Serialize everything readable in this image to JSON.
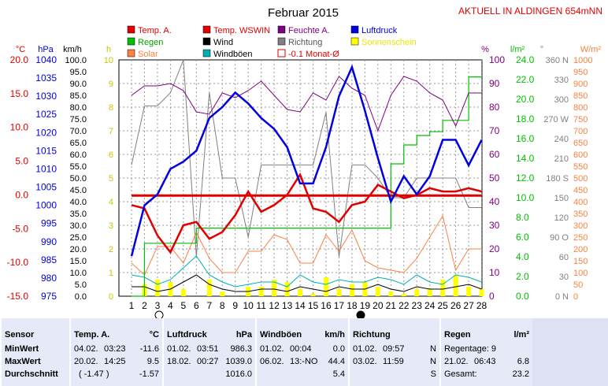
{
  "header": {
    "title": "Februar 2015",
    "location": "AKTUELL IN ALDINGEN 654mNN"
  },
  "legend": [
    {
      "label": "Temp. A.",
      "color": "#e00000",
      "style": "square"
    },
    {
      "label": "Temp. WSWIN",
      "color": "#e00000",
      "style": "square"
    },
    {
      "label": "Feuchte A.",
      "color": "#800080",
      "style": "square"
    },
    {
      "label": "Luftdruck",
      "color": "#0000e0",
      "style": "square"
    },
    {
      "label": "Regen",
      "color": "#00c000",
      "style": "square"
    },
    {
      "label": "Wind",
      "color": "#000000",
      "style": "square"
    },
    {
      "label": "Richtung",
      "color": "#808080",
      "style": "square"
    },
    {
      "label": "Sonnenschein",
      "color": "#ffff00",
      "style": "square"
    },
    {
      "label": "Solar",
      "color": "#ff8040",
      "style": "square"
    },
    {
      "label": "Windböen",
      "color": "#00b0b0",
      "style": "square"
    },
    {
      "label": "-0.1 Monat-Ø",
      "color": "#e00000",
      "style": "outline"
    }
  ],
  "chart_data": {
    "type": "line",
    "x": [
      1,
      2,
      3,
      4,
      5,
      6,
      7,
      8,
      9,
      10,
      11,
      12,
      13,
      14,
      15,
      16,
      17,
      18,
      19,
      20,
      21,
      22,
      23,
      24,
      25,
      26,
      27,
      28
    ],
    "axes": {
      "temp": {
        "unit": "°C",
        "range": [
          -15,
          20
        ],
        "ticks": [
          "20.0",
          "15.0",
          "10.0",
          "5.0",
          "0.0",
          "-5.0",
          "-10.0",
          "-15.0"
        ],
        "color": "#e00000"
      },
      "pressure": {
        "unit": "hPa",
        "range": [
          975,
          1040
        ],
        "ticks": [
          "1040",
          "1035",
          "1030",
          "1025",
          "1020",
          "1015",
          "1010",
          "1005",
          "1000",
          "995",
          "990",
          "985",
          "980",
          "975"
        ],
        "color": "#0000e0"
      },
      "wind": {
        "unit": "km/h",
        "range": [
          0,
          100
        ],
        "ticks": [
          "100.0",
          "95.0",
          "90.0",
          "85.0",
          "80.0",
          "75.0",
          "70.0",
          "65.0",
          "60.0",
          "55.0",
          "50.0",
          "45.0",
          "40.0",
          "35.0",
          "30.0",
          "25.0",
          "20.0",
          "15.0",
          "10.0",
          "5.0",
          "0.0"
        ],
        "color": "#000000"
      },
      "sunshine": {
        "unit": "h",
        "range": [
          0,
          10
        ],
        "ticks": [
          "10",
          "9",
          "8",
          "7",
          "6",
          "5",
          "4",
          "3",
          "2",
          "1",
          "0"
        ],
        "color": "#c8c800"
      },
      "humidity": {
        "unit": "%",
        "range": [
          0,
          100
        ],
        "ticks": [
          "100",
          "90",
          "80",
          "70",
          "60",
          "50",
          "40",
          "30",
          "20",
          "10",
          "0"
        ],
        "color": "#800080"
      },
      "rain": {
        "unit": "l/m²",
        "range": [
          0,
          25
        ],
        "ticks": [
          "24.0",
          "22.0",
          "20.0",
          "18.0",
          "16.0",
          "14.0",
          "12.0",
          "10.0",
          "8.0",
          "6.0",
          "4.0",
          "2.0",
          "0.0"
        ],
        "color": "#00c000"
      },
      "direction": {
        "unit": "°",
        "range": [
          0,
          360
        ],
        "ticks": [
          "360 N",
          "330",
          "300",
          "270 W",
          "240",
          "210",
          "180 S",
          "150",
          "120",
          "90 O",
          "60",
          "30",
          "0 N"
        ],
        "color": "#808080"
      },
      "solar": {
        "unit": "W/m²",
        "range": [
          0,
          1000
        ],
        "ticks": [
          "1000",
          "950",
          "900",
          "850",
          "800",
          "750",
          "700",
          "650",
          "600",
          "550",
          "500",
          "450",
          "400",
          "350",
          "300",
          "250",
          "200",
          "150",
          "100",
          "50",
          "0"
        ],
        "color": "#ff8040"
      }
    },
    "series": [
      {
        "name": "Temp. A.",
        "axis": "temp",
        "color": "#e00000",
        "values": [
          -1.5,
          -2,
          -6,
          -8.5,
          -4.5,
          -4,
          -6.5,
          -5.5,
          -3,
          0.5,
          -2.5,
          -1.5,
          0,
          3,
          -2,
          -2.5,
          -4,
          -1.5,
          -1,
          1.5,
          0.5,
          -0.5,
          0,
          1,
          0.5,
          0.5,
          1,
          0.5
        ]
      },
      {
        "name": "-0.1 Monat-Ø",
        "axis": "temp",
        "color": "#e00000",
        "values": [
          -0.1,
          -0.1,
          -0.1,
          -0.1,
          -0.1,
          -0.1,
          -0.1,
          -0.1,
          -0.1,
          -0.1,
          -0.1,
          -0.1,
          -0.1,
          -0.1,
          -0.1,
          -0.1,
          -0.1,
          -0.1,
          -0.1,
          -0.1,
          -0.1,
          -0.1,
          -0.1,
          -0.1,
          -0.1,
          -0.1,
          -0.1,
          -0.1
        ]
      },
      {
        "name": "Feuchte A.",
        "axis": "humidity",
        "color": "#800080",
        "values": [
          85,
          89,
          89,
          90,
          87,
          78,
          77,
          86,
          84,
          87,
          91,
          85,
          79,
          78,
          86,
          83,
          93,
          88,
          85,
          70,
          85,
          93,
          91,
          86,
          83,
          72,
          86,
          86
        ]
      },
      {
        "name": "Luftdruck",
        "axis": "pressure",
        "color": "#0000e0",
        "values": [
          986,
          1000,
          1003,
          1010,
          1012,
          1015,
          1024,
          1027,
          1031,
          1028,
          1024,
          1021,
          1016,
          1006,
          1006,
          1016,
          1030,
          1038,
          1026,
          1013,
          1001,
          1008,
          1003,
          1008,
          1018,
          1018,
          1011,
          1018
        ]
      },
      {
        "name": "Regen",
        "axis": "rain",
        "color": "#00c000",
        "values": [
          0,
          5.6,
          5.6,
          5.6,
          5.6,
          7.2,
          7.2,
          7.2,
          7.2,
          7.2,
          7.2,
          7.2,
          7.2,
          7.2,
          7.2,
          7.2,
          7.2,
          7.2,
          7.2,
          7.2,
          14,
          16,
          17,
          17.4,
          18.6,
          18.6,
          23.2,
          23.2
        ]
      },
      {
        "name": "Wind",
        "axis": "wind",
        "color": "#000000",
        "values": [
          4,
          4,
          2,
          3,
          6,
          9,
          5,
          3,
          2,
          2,
          3,
          3,
          2,
          4,
          3,
          2,
          4,
          3,
          3,
          5,
          3,
          2,
          4,
          3,
          3,
          4,
          5,
          3
        ]
      },
      {
        "name": "Windböen",
        "axis": "wind",
        "color": "#00b0b0",
        "values": [
          9,
          8,
          5,
          7,
          12,
          17,
          9,
          6,
          4,
          5,
          6,
          6,
          4,
          9,
          6,
          5,
          7,
          6,
          6,
          8,
          7,
          5,
          9,
          6,
          5,
          9,
          8,
          6
        ]
      },
      {
        "name": "Richtung",
        "axis": "direction",
        "color": "#808080",
        "values": [
          200,
          290,
          290,
          310,
          360,
          60,
          310,
          180,
          180,
          90,
          200,
          200,
          200,
          200,
          200,
          280,
          60,
          200,
          200,
          180,
          150,
          150,
          180,
          180,
          180,
          180,
          135,
          135
        ]
      },
      {
        "name": "Solar",
        "axis": "solar",
        "color": "#ff8040",
        "values": [
          140,
          90,
          210,
          210,
          140,
          270,
          160,
          100,
          100,
          190,
          190,
          260,
          240,
          140,
          140,
          260,
          190,
          280,
          150,
          120,
          110,
          100,
          160,
          250,
          340,
          110,
          200,
          200
        ]
      },
      {
        "name": "Sonnenschein",
        "axis": "sunshine",
        "color": "#ffff00",
        "type": "bar",
        "values": [
          0,
          0.5,
          0.7,
          0.6,
          0.3,
          0,
          0.7,
          0.2,
          0,
          0.4,
          0.4,
          0.7,
          0.6,
          0.3,
          0.1,
          0.8,
          0.3,
          0.5,
          0.6,
          0.4,
          0.2,
          0.1,
          0.3,
          0.3,
          0.7,
          0.9,
          0.4,
          0.3
        ]
      }
    ]
  },
  "stats": {
    "rows": [
      "MinWert",
      "MaxWert",
      "Durchschnitt"
    ],
    "sensor": {
      "title": "Sensor"
    },
    "temp": {
      "title": "Temp. A.",
      "unit": "°C",
      "min_date": "04.02.",
      "min_time": "03:23",
      "min_val": "-11.6",
      "max_date": "20.02.",
      "max_time": "14:25",
      "max_val": "9.5",
      "avg_extra": "( -1.47 )",
      "avg_val": "-1.57"
    },
    "pressure": {
      "title": "Luftdruck",
      "unit": "hPa",
      "min_date": "01.02.",
      "min_time": "03:51",
      "min_val": "986.3",
      "max_date": "18.02.",
      "max_time": "00:27",
      "max_val": "1039.0",
      "avg_val": "1016.0"
    },
    "gust": {
      "title": "Windböen",
      "unit": "km/h",
      "min_date": "01.02.",
      "min_time": "00:04",
      "min_val": "0.0",
      "max_date": "06.02.",
      "max_time": "13:-NO",
      "max_val": "44.4",
      "avg_val": "5.4"
    },
    "direction": {
      "title": "Richtung",
      "min_date": "01.02.",
      "min_time": "09:57",
      "min_val": "N",
      "max_date": "03.02.",
      "max_time": "11:59",
      "max_val": "N",
      "avg_val": "S"
    },
    "rain": {
      "title": "Regen",
      "unit": "l/m²",
      "line1": "Regentage: 9",
      "max_date": "21.02.",
      "max_time": "06:43",
      "max_val": "6.8",
      "total_label": "Gesamt:",
      "total_val": "23.2"
    }
  }
}
